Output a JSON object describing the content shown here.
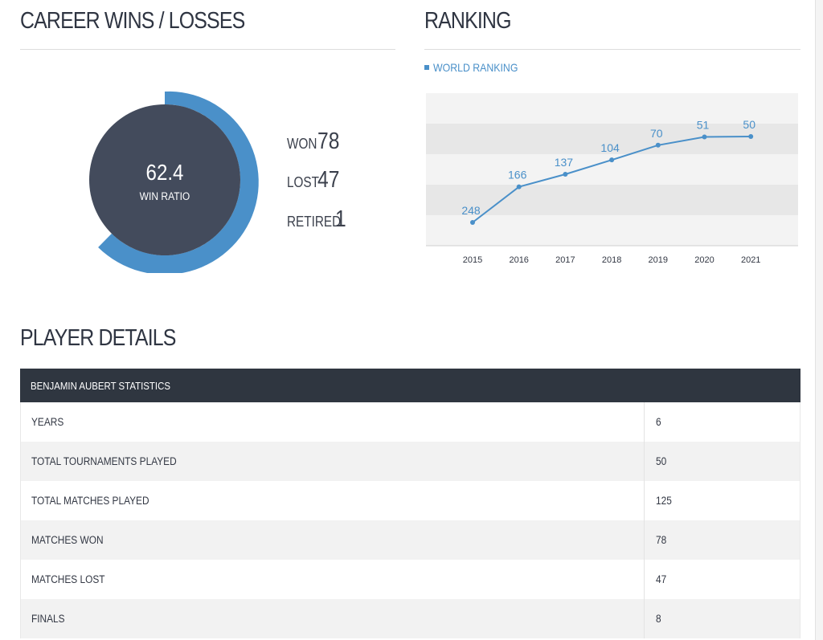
{
  "career": {
    "title": "CAREER WINS / LOSSES",
    "ratio_value": "62.4",
    "ratio_label": "WIN RATIO",
    "ratio_fraction": 0.624,
    "colors": {
      "accent": "#4a90c9",
      "center": "#434b5c"
    },
    "stats": [
      {
        "label": "WON",
        "value": "78"
      },
      {
        "label": "LOST",
        "value": "47"
      },
      {
        "label": "RETIRED",
        "value": "1"
      }
    ]
  },
  "ranking": {
    "title": "RANKING",
    "legend": "WORLD RANKING",
    "chart_data": {
      "type": "line",
      "x": [
        "2015",
        "2016",
        "2017",
        "2018",
        "2019",
        "2020",
        "2021"
      ],
      "series": [
        {
          "name": "WORLD RANKING",
          "values": [
            248,
            166,
            137,
            104,
            70,
            51,
            50
          ]
        }
      ],
      "y_inverted": true,
      "grid": "alternating horizontal bands",
      "legend_position": "top-left"
    }
  },
  "details": {
    "title": "PLAYER DETAILS",
    "table_header": "BENJAMIN AUBERT STATISTICS",
    "rows": [
      {
        "label": "YEARS",
        "value": "6"
      },
      {
        "label": "TOTAL TOURNAMENTS PLAYED",
        "value": "50"
      },
      {
        "label": "TOTAL MATCHES PLAYED",
        "value": "125"
      },
      {
        "label": "MATCHES WON",
        "value": "78"
      },
      {
        "label": "MATCHES LOST",
        "value": "47"
      },
      {
        "label": "FINALS",
        "value": "8"
      }
    ]
  }
}
